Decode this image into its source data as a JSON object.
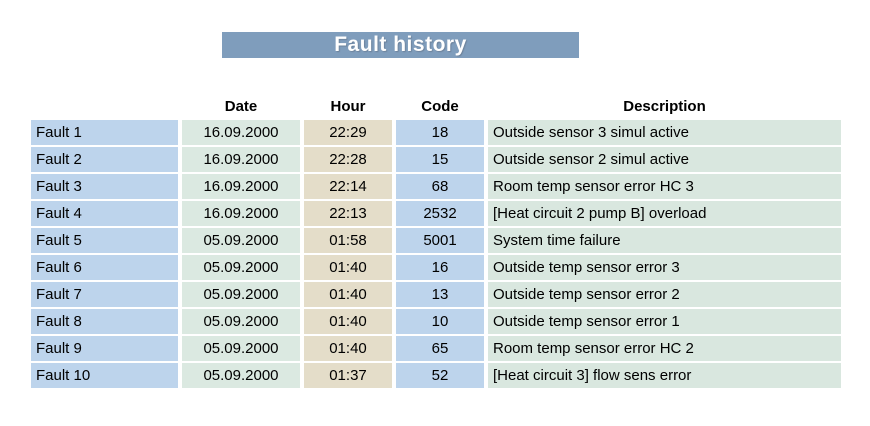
{
  "title": "Fault history",
  "table": {
    "columns": {
      "date": "Date",
      "hour": "Hour",
      "code": "Code",
      "description": "Description"
    },
    "rows": [
      {
        "label": "Fault 1",
        "date": "16.09.2000",
        "hour": "22:29",
        "code": "18",
        "description": "Outside sensor 3 simul active"
      },
      {
        "label": "Fault 2",
        "date": "16.09.2000",
        "hour": "22:28",
        "code": "15",
        "description": "Outside sensor 2 simul active"
      },
      {
        "label": "Fault 3",
        "date": "16.09.2000",
        "hour": "22:14",
        "code": "68",
        "description": "Room temp sensor error HC 3"
      },
      {
        "label": "Fault 4",
        "date": "16.09.2000",
        "hour": "22:13",
        "code": "2532",
        "description": "[Heat circuit 2 pump B] overload"
      },
      {
        "label": "Fault 5",
        "date": "05.09.2000",
        "hour": "01:58",
        "code": "5001",
        "description": "System time failure"
      },
      {
        "label": "Fault 6",
        "date": "05.09.2000",
        "hour": "01:40",
        "code": "16",
        "description": "Outside temp sensor error 3"
      },
      {
        "label": "Fault 7",
        "date": "05.09.2000",
        "hour": "01:40",
        "code": "13",
        "description": "Outside temp sensor error 2"
      },
      {
        "label": "Fault 8",
        "date": "05.09.2000",
        "hour": "01:40",
        "code": "10",
        "description": "Outside temp sensor error 1"
      },
      {
        "label": "Fault 9",
        "date": "05.09.2000",
        "hour": "01:40",
        "code": "65",
        "description": "Room temp sensor error HC 2"
      },
      {
        "label": "Fault 10",
        "date": "05.09.2000",
        "hour": "01:37",
        "code": "52",
        "description": "[Heat circuit 3] flow sens error"
      }
    ]
  },
  "colors": {
    "banner": "#7f9dbc",
    "label_bg": "#bdd4ec",
    "date_bg": "#dbe9e1",
    "hour_bg": "#e4ddc9",
    "code_bg": "#bdd4ec",
    "description_bg": "#d9e7df",
    "title_text": "#ffffff",
    "cell_text": "#000000"
  }
}
